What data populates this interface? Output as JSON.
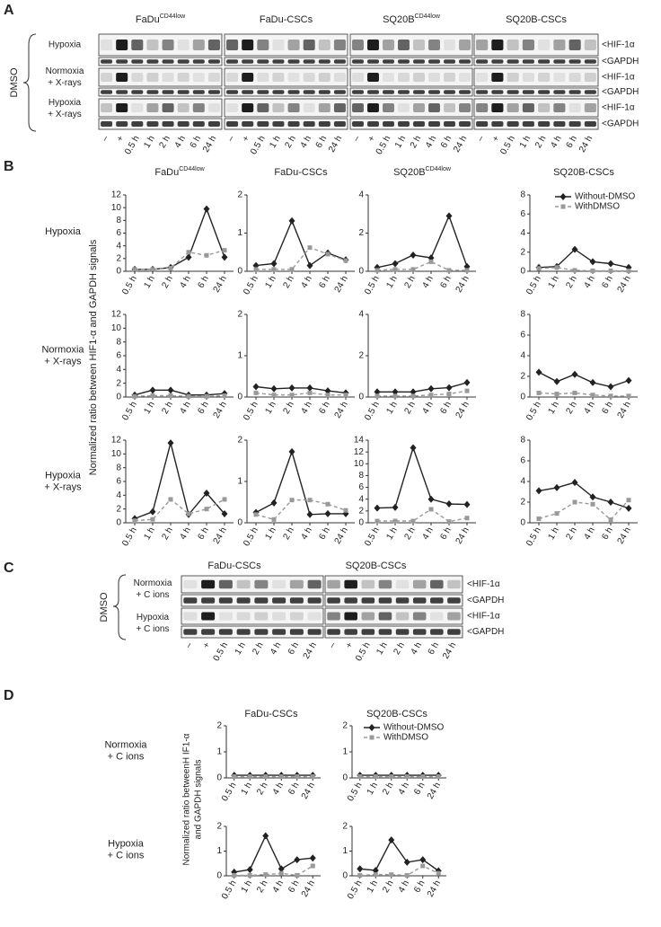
{
  "panel_labels": [
    "A",
    "B",
    "C",
    "D"
  ],
  "blot_a": {
    "treatment": "DMSO",
    "cell_lines": [
      {
        "name": "FaDu",
        "sup": "CD44low"
      },
      {
        "name": "FaDu-CSCs"
      },
      {
        "name": "SQ20B",
        "sup": "CD44low"
      },
      {
        "name": "SQ20B-CSCs"
      }
    ],
    "conditions": [
      [
        "Hypoxia"
      ],
      [
        "Normoxia",
        "+ X-rays"
      ],
      [
        "Hypoxia",
        "+ X-rays"
      ]
    ],
    "markers": [
      "<HIF-1α",
      "<GAPDH"
    ],
    "lanes": [
      "–",
      "+",
      "0.5 h",
      "1 h",
      "2 h",
      "4 h",
      "6 h",
      "24 h"
    ]
  },
  "charts_b": {
    "y_label": "Normalized ratio between HIF1-α and GAPDH signals",
    "column_titles": [
      {
        "name": "FaDu",
        "sup": "CD44low"
      },
      {
        "name": "FaDu-CSCs"
      },
      {
        "name": "SQ20B",
        "sup": "CD44low"
      },
      {
        "name": "SQ20B-CSCs"
      }
    ],
    "row_labels": [
      [
        "Hypoxia"
      ],
      [
        "Normoxia",
        "+ X-rays"
      ],
      [
        "Hypoxia",
        "+ X-rays"
      ]
    ]
  },
  "blot_c": {
    "treatment": "DMSO",
    "cell_lines": [
      "FaDu-CSCs",
      "SQ20B-CSCs"
    ],
    "conditions": [
      [
        "Normoxia",
        "+ C ions"
      ],
      [
        "Hypoxia",
        "+ C ions"
      ]
    ],
    "markers": [
      "<HIF-1α",
      "<GAPDH"
    ],
    "lanes": [
      "–",
      "+",
      "0.5 h",
      "1 h",
      "2 h",
      "4 h",
      "6 h",
      "24 h"
    ]
  },
  "charts_d": {
    "y_label": [
      "Normalized ratio betweenH IF1-α",
      "and GAPDH signals"
    ],
    "column_titles": [
      "FaDu-CSCs",
      "SQ20B-CSCs"
    ],
    "row_labels": [
      [
        "Normoxia",
        "+ C ions"
      ],
      [
        "Hypoxia",
        "+ C ions"
      ]
    ]
  },
  "chart_data": [
    {
      "type": "line",
      "categories": [
        "0.5 h",
        "1 h",
        "2 h",
        "4 h",
        "6 h",
        "24 h"
      ],
      "ylim": [
        0,
        12
      ],
      "yticks": [
        0,
        2,
        4,
        6,
        8,
        10,
        12
      ],
      "series": [
        {
          "color": "#222",
          "marker": "diamond",
          "dashed": false,
          "values": [
            0.3,
            0.3,
            0.6,
            2.2,
            9.8,
            2.2
          ]
        },
        {
          "color": "#999",
          "marker": "square",
          "dashed": true,
          "values": [
            0.3,
            0.3,
            0.5,
            3,
            2.5,
            3.3
          ]
        }
      ]
    },
    {
      "type": "line",
      "categories": [
        "0.5 h",
        "1 h",
        "2 h",
        "4 h",
        "6 h",
        "24 h"
      ],
      "ylim": [
        0,
        2
      ],
      "yticks": [
        0,
        1,
        2
      ],
      "series": [
        {
          "color": "#222",
          "marker": "diamond",
          "dashed": false,
          "values": [
            0.15,
            0.2,
            1.32,
            0.15,
            0.48,
            0.3
          ]
        },
        {
          "color": "#999",
          "marker": "square",
          "dashed": true,
          "values": [
            0.05,
            0.05,
            0.05,
            0.62,
            0.45,
            0.28
          ]
        }
      ]
    },
    {
      "type": "line",
      "categories": [
        "0.5 h",
        "1 h",
        "2 h",
        "4 h",
        "6 h",
        "24 h"
      ],
      "ylim": [
        0,
        4
      ],
      "yticks": [
        0,
        2,
        4
      ],
      "series": [
        {
          "color": "#222",
          "marker": "diamond",
          "dashed": false,
          "values": [
            0.2,
            0.4,
            0.85,
            0.7,
            2.9,
            0.25
          ]
        },
        {
          "color": "#999",
          "marker": "square",
          "dashed": true,
          "values": [
            0.05,
            0.1,
            0.1,
            0.5,
            0.05,
            0.05
          ]
        }
      ]
    },
    {
      "type": "line",
      "categories": [
        "0.5 h",
        "1 h",
        "2 h",
        "4 h",
        "6 h",
        "24 h"
      ],
      "ylim": [
        0,
        8
      ],
      "yticks": [
        0,
        2,
        4,
        6,
        8
      ],
      "legend": "upper right",
      "series": [
        {
          "name": "Without-DMSO",
          "color": "#222",
          "marker": "diamond",
          "dashed": false,
          "values": [
            0.4,
            0.5,
            2.3,
            1,
            0.8,
            0.4
          ]
        },
        {
          "name": "WithDMSO",
          "color": "#999",
          "marker": "square",
          "dashed": true,
          "values": [
            0.3,
            0.4,
            0.1,
            0.05,
            0.05,
            0.05
          ]
        }
      ]
    },
    {
      "type": "line",
      "categories": [
        "0.5 h",
        "1 h",
        "2 h",
        "4 h",
        "6 h",
        "24 h"
      ],
      "ylim": [
        0,
        12
      ],
      "yticks": [
        0,
        2,
        4,
        6,
        8,
        10,
        12
      ],
      "series": [
        {
          "color": "#222",
          "marker": "diamond",
          "dashed": false,
          "values": [
            0.3,
            1,
            1,
            0.3,
            0.3,
            0.5
          ]
        },
        {
          "color": "#999",
          "marker": "square",
          "dashed": true,
          "values": [
            0.1,
            0.2,
            0.2,
            0.1,
            0.1,
            0.2
          ]
        }
      ]
    },
    {
      "type": "line",
      "categories": [
        "0.5 h",
        "1 h",
        "2 h",
        "4 h",
        "6 h",
        "24 h"
      ],
      "ylim": [
        0,
        2
      ],
      "yticks": [
        0,
        1,
        2
      ],
      "series": [
        {
          "color": "#222",
          "marker": "diamond",
          "dashed": false,
          "values": [
            0.25,
            0.2,
            0.22,
            0.22,
            0.15,
            0.1
          ]
        },
        {
          "color": "#999",
          "marker": "square",
          "dashed": true,
          "values": [
            0.1,
            0.05,
            0.05,
            0.1,
            0.05,
            0.05
          ]
        }
      ]
    },
    {
      "type": "line",
      "categories": [
        "0.5 h",
        "1 h",
        "2 h",
        "4 h",
        "6 h",
        "24 h"
      ],
      "ylim": [
        0,
        4
      ],
      "yticks": [
        0,
        2,
        4
      ],
      "series": [
        {
          "color": "#222",
          "marker": "diamond",
          "dashed": false,
          "values": [
            0.25,
            0.25,
            0.25,
            0.4,
            0.45,
            0.7
          ]
        },
        {
          "color": "#999",
          "marker": "square",
          "dashed": true,
          "values": [
            0.05,
            0.05,
            0.05,
            0.1,
            0.15,
            0.3
          ]
        }
      ]
    },
    {
      "type": "line",
      "categories": [
        "0.5 h",
        "1 h",
        "2 h",
        "4 h",
        "6 h",
        "24 h"
      ],
      "ylim": [
        0,
        8
      ],
      "yticks": [
        0,
        2,
        4,
        6,
        8
      ],
      "series": [
        {
          "color": "#222",
          "marker": "diamond",
          "dashed": false,
          "values": [
            2.4,
            1.5,
            2.2,
            1.4,
            1,
            1.6
          ]
        },
        {
          "color": "#999",
          "marker": "square",
          "dashed": true,
          "values": [
            0.4,
            0.3,
            0.4,
            0.2,
            0.1,
            0.1
          ]
        }
      ]
    },
    {
      "type": "line",
      "categories": [
        "0.5 h",
        "1 h",
        "2 h",
        "4 h",
        "6 h",
        "24 h"
      ],
      "ylim": [
        0,
        12
      ],
      "yticks": [
        0,
        2,
        4,
        6,
        8,
        10,
        12
      ],
      "series": [
        {
          "color": "#222",
          "marker": "diamond",
          "dashed": false,
          "values": [
            0.6,
            1.6,
            11.6,
            1.2,
            4.3,
            1.3
          ]
        },
        {
          "color": "#999",
          "marker": "square",
          "dashed": true,
          "values": [
            0.3,
            0.5,
            3.4,
            1.3,
            2,
            3.4
          ]
        }
      ]
    },
    {
      "type": "line",
      "categories": [
        "0.5 h",
        "1 h",
        "2 h",
        "4 h",
        "6 h",
        "24 h"
      ],
      "ylim": [
        0,
        2
      ],
      "yticks": [
        0,
        1,
        2
      ],
      "series": [
        {
          "color": "#222",
          "marker": "diamond",
          "dashed": false,
          "values": [
            0.25,
            0.48,
            1.72,
            0.2,
            0.22,
            0.22
          ]
        },
        {
          "color": "#999",
          "marker": "square",
          "dashed": true,
          "values": [
            0.2,
            0.08,
            0.55,
            0.55,
            0.45,
            0.3
          ]
        }
      ]
    },
    {
      "type": "line",
      "categories": [
        "0.5 h",
        "1 h",
        "2 h",
        "4 h",
        "6 h",
        "24 h"
      ],
      "ylim": [
        0,
        14
      ],
      "yticks": [
        0,
        2,
        4,
        6,
        8,
        10,
        12,
        14
      ],
      "series": [
        {
          "color": "#222",
          "marker": "diamond",
          "dashed": false,
          "values": [
            2.5,
            2.6,
            12.7,
            4,
            3.2,
            3.1
          ]
        },
        {
          "color": "#999",
          "marker": "square",
          "dashed": true,
          "values": [
            0.3,
            0.3,
            0.3,
            2.3,
            0.2,
            0.8
          ]
        }
      ]
    },
    {
      "type": "line",
      "categories": [
        "0.5 h",
        "1 h",
        "2 h",
        "4 h",
        "6 h",
        "24 h"
      ],
      "ylim": [
        0,
        8
      ],
      "yticks": [
        0,
        2,
        4,
        6,
        8
      ],
      "series": [
        {
          "color": "#222",
          "marker": "diamond",
          "dashed": false,
          "values": [
            3.1,
            3.4,
            3.9,
            2.5,
            2,
            1.4
          ]
        },
        {
          "color": "#999",
          "marker": "square",
          "dashed": true,
          "values": [
            0.4,
            0.9,
            2,
            1.8,
            0.3,
            2.2
          ]
        }
      ]
    },
    {
      "type": "line",
      "categories": [
        "0.5 h",
        "1 h",
        "2 h",
        "4 h",
        "6 h",
        "24 h"
      ],
      "ylim": [
        0,
        2
      ],
      "yticks": [
        0,
        1,
        2
      ],
      "series": [
        {
          "color": "#222",
          "marker": "diamond",
          "dashed": false,
          "values": [
            0.1,
            0.1,
            0.1,
            0.1,
            0.1,
            0.1
          ]
        },
        {
          "color": "#999",
          "marker": "square",
          "dashed": true,
          "values": [
            0.05,
            0.05,
            0.05,
            0.05,
            0.05,
            0.05
          ]
        }
      ]
    },
    {
      "type": "line",
      "categories": [
        "0.5 h",
        "1 h",
        "2 h",
        "4 h",
        "6 h",
        "24 h"
      ],
      "ylim": [
        0,
        2
      ],
      "yticks": [
        0,
        1,
        2
      ],
      "legend": "upper right",
      "series": [
        {
          "name": "Without-DMSO",
          "color": "#222",
          "marker": "diamond",
          "dashed": false,
          "values": [
            0.1,
            0.1,
            0.1,
            0.1,
            0.1,
            0.1
          ]
        },
        {
          "name": "WithDMSO",
          "color": "#999",
          "marker": "square",
          "dashed": true,
          "values": [
            0.05,
            0.05,
            0.05,
            0.05,
            0.05,
            0.05
          ]
        }
      ]
    },
    {
      "type": "line",
      "categories": [
        "0.5 h",
        "1 h",
        "2 h",
        "4 h",
        "6 h",
        "24 h"
      ],
      "ylim": [
        0,
        2
      ],
      "yticks": [
        0,
        1,
        2
      ],
      "series": [
        {
          "color": "#222",
          "marker": "diamond",
          "dashed": false,
          "values": [
            0.15,
            0.25,
            1.62,
            0.28,
            0.65,
            0.72
          ]
        },
        {
          "color": "#999",
          "marker": "square",
          "dashed": true,
          "values": [
            0.02,
            0.02,
            0.05,
            0.1,
            0.02,
            0.4
          ]
        }
      ]
    },
    {
      "type": "line",
      "categories": [
        "0.5 h",
        "1 h",
        "2 h",
        "4 h",
        "6 h",
        "24 h"
      ],
      "ylim": [
        0,
        2
      ],
      "yticks": [
        0,
        1,
        2
      ],
      "series": [
        {
          "color": "#222",
          "marker": "diamond",
          "dashed": false,
          "values": [
            0.28,
            0.22,
            1.45,
            0.55,
            0.65,
            0.2
          ]
        },
        {
          "color": "#999",
          "marker": "square",
          "dashed": true,
          "values": [
            0.02,
            0.05,
            0.05,
            0.02,
            0.4,
            0.1
          ]
        }
      ]
    }
  ]
}
